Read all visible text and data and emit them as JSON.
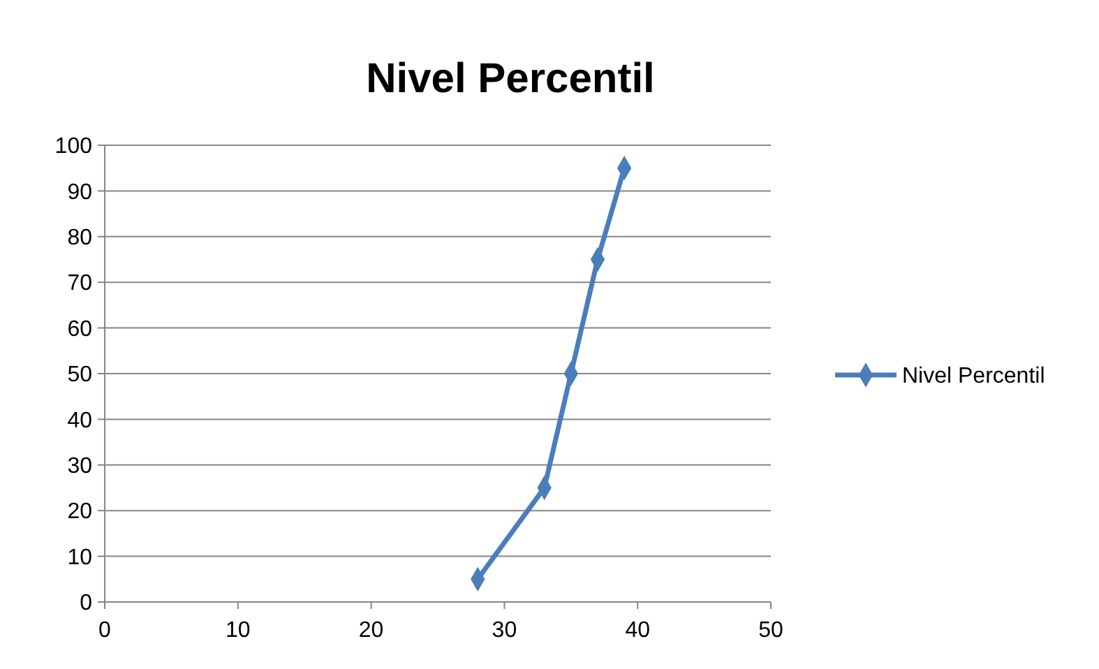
{
  "chart_data": {
    "type": "line",
    "title": "Nivel Percentil",
    "x": [
      28,
      33,
      35,
      37,
      39
    ],
    "series": [
      {
        "name": "Nivel Percentil",
        "color": "#4a7ebb",
        "values": [
          5,
          25,
          50,
          75,
          95
        ]
      }
    ],
    "xlim": [
      0,
      50
    ],
    "xticks": [
      0,
      10,
      20,
      30,
      40,
      50
    ],
    "ylim": [
      0,
      100
    ],
    "yticks": [
      0,
      10,
      20,
      30,
      40,
      50,
      60,
      70,
      80,
      90,
      100
    ],
    "grid": "y",
    "legend": "right",
    "marker": "diamond",
    "line_style": "solid"
  }
}
